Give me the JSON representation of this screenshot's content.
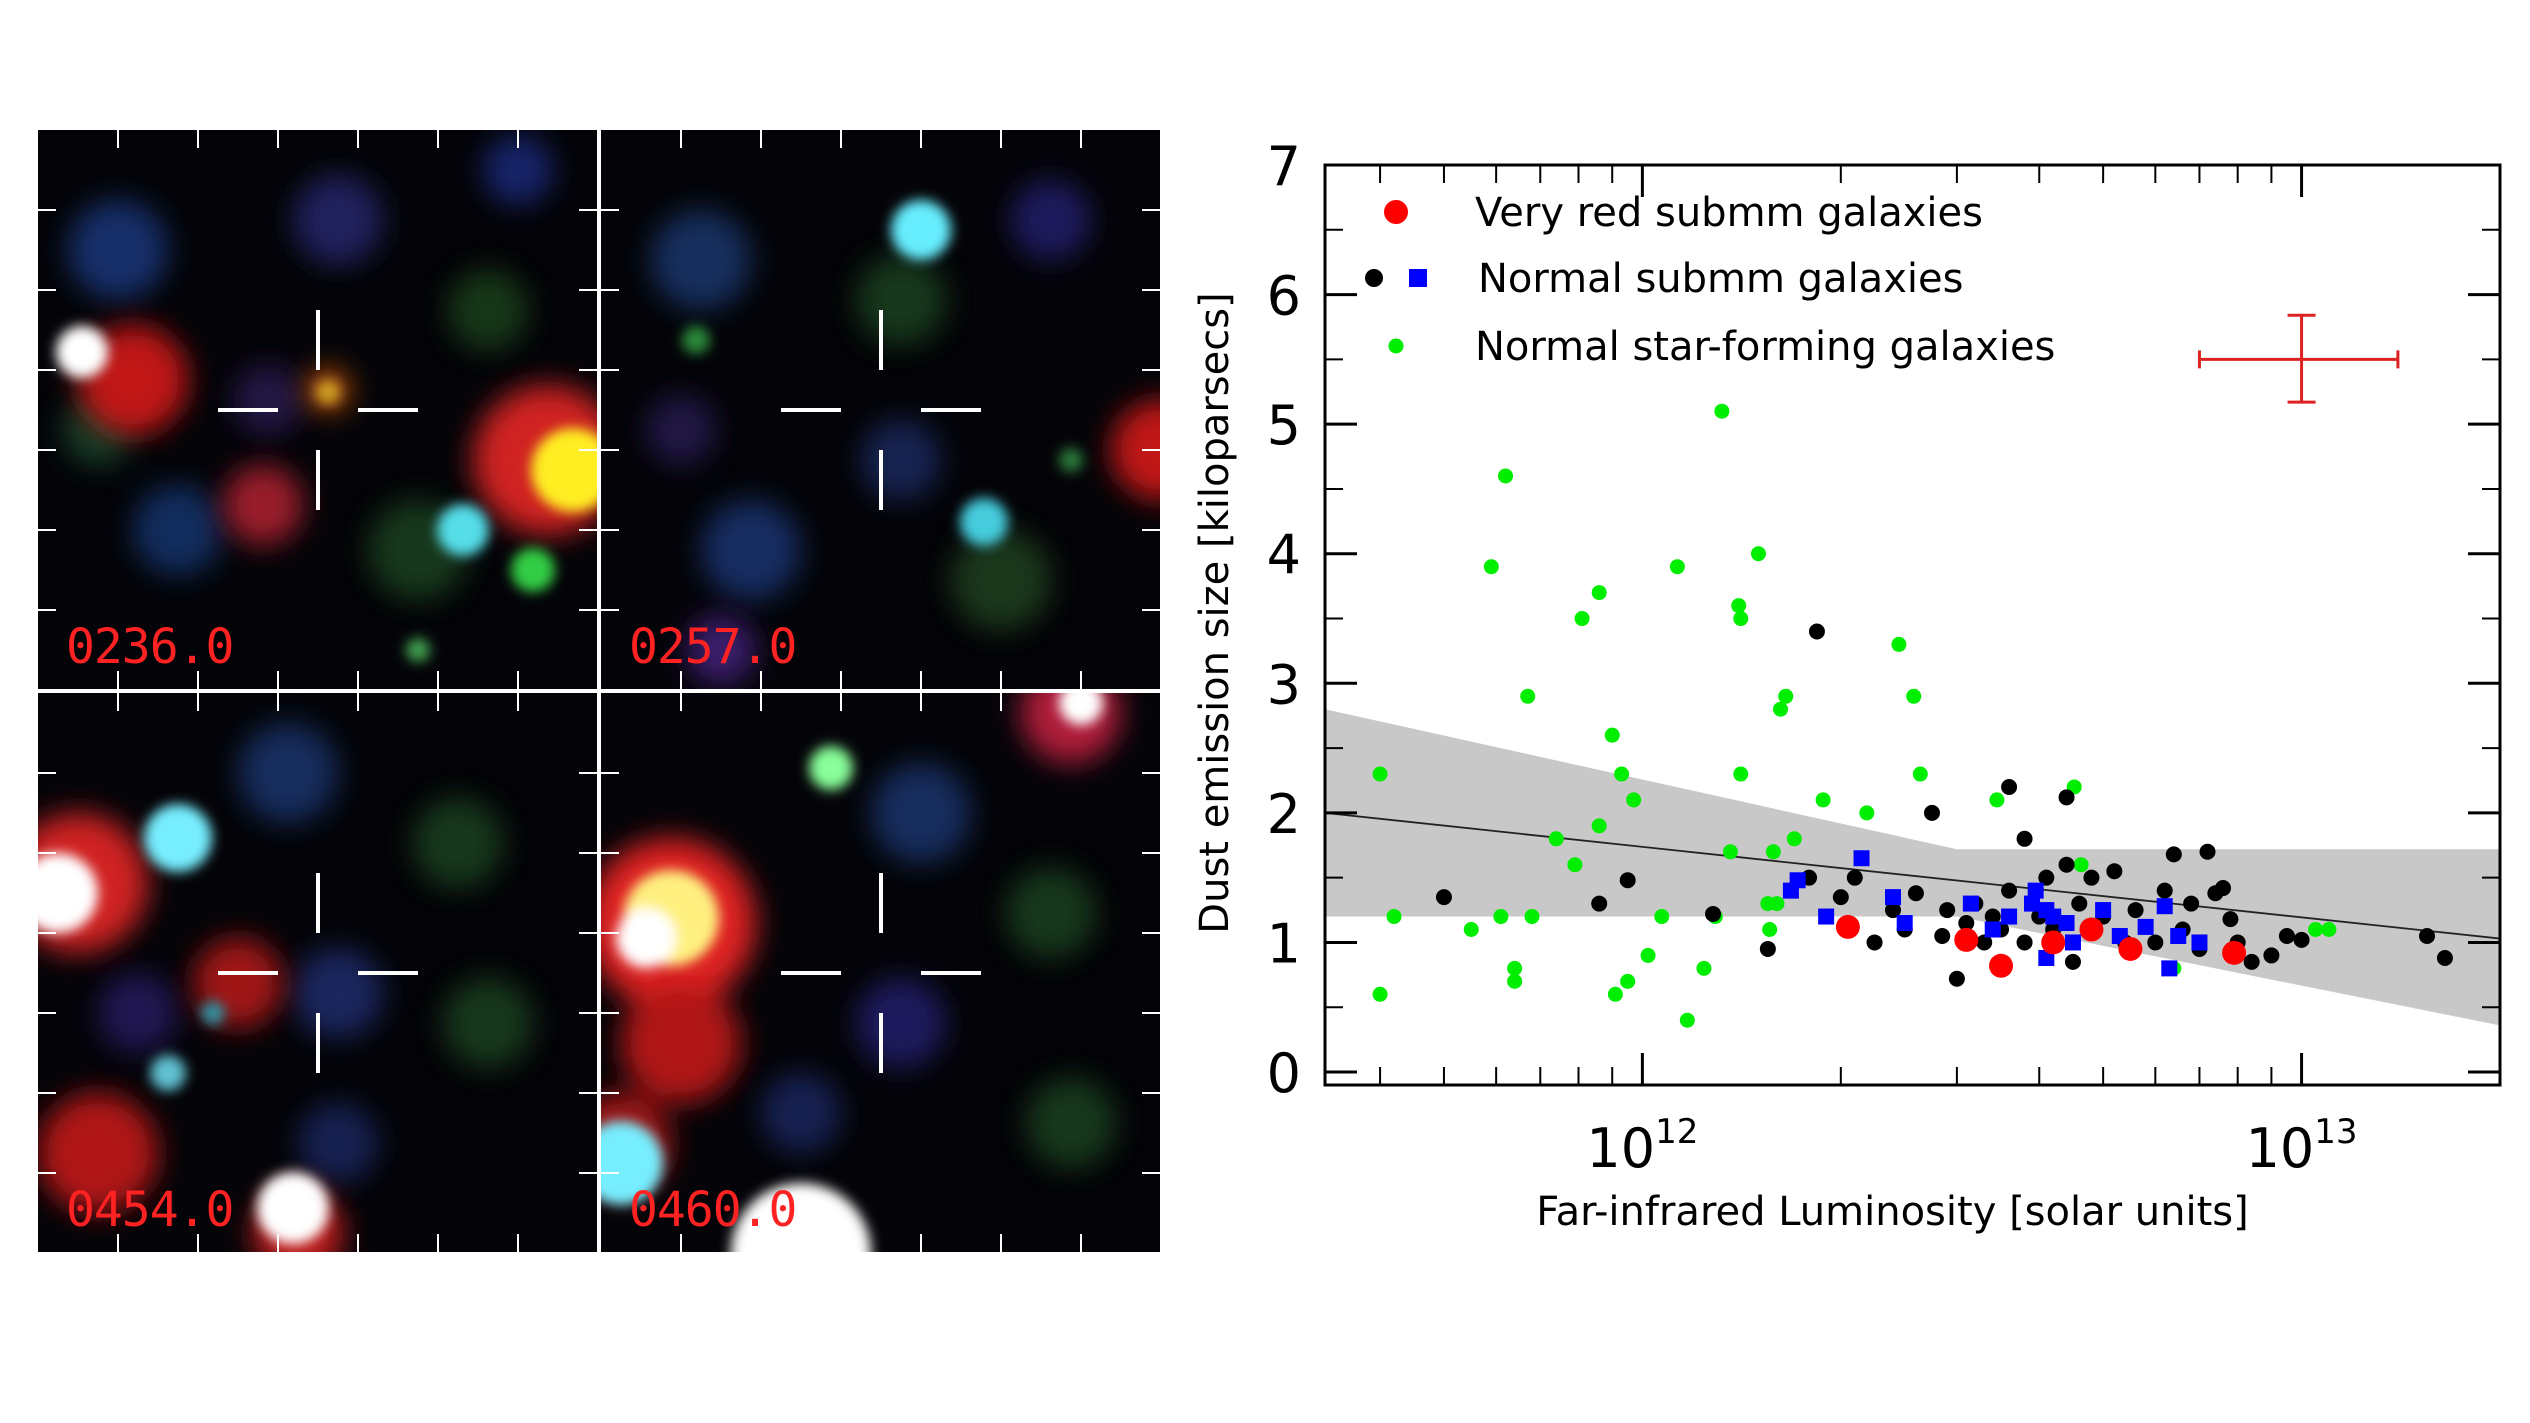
{
  "panels": [
    {
      "label": "0236.0"
    },
    {
      "label": "0257.0"
    },
    {
      "label": "0454.0"
    },
    {
      "label": "0460.0"
    }
  ],
  "colors": {
    "very_red": "#ff0000",
    "normal_black": "#000000",
    "normal_blue": "#0000ff",
    "star_forming": "#00ee00",
    "band": "#c8c8c8",
    "error_bar": "#dd2222",
    "panel_label": "#ff2222"
  },
  "chart_data": {
    "type": "scatter",
    "xlabel": "Far-infrared Luminosity [solar units]",
    "ylabel": "Dust  emission size  [kiloparsecs]",
    "x_scale": "log",
    "xlim": [
      330000000000.0,
      20000000000000.0
    ],
    "ylim": [
      -0.1,
      7.0
    ],
    "x_tick_labels": [
      {
        "value": 1000000000000.0,
        "base": "10",
        "exp": "12"
      },
      {
        "value": 10000000000000.0,
        "base": "10",
        "exp": "13"
      }
    ],
    "y_ticks": [
      0,
      1,
      2,
      3,
      4,
      5,
      6,
      7
    ],
    "legend_position": "top-left",
    "legend": [
      {
        "label": "Very red submm galaxies",
        "series": "very_red"
      },
      {
        "label": "Normal submm galaxies",
        "series": "normal"
      },
      {
        "label": "Normal star-forming galaxies",
        "series": "star_forming"
      }
    ],
    "error_bar": {
      "x": 10000000000000.0,
      "y": 5.5,
      "x_low": 7000000000000.0,
      "x_high": 14000000000000.0,
      "y_low": 5.17,
      "y_high": 5.84
    },
    "fit": {
      "x1": 330000000000.0,
      "y1": 2.0,
      "x2": 20000000000000.0,
      "y2": 1.03
    },
    "band": {
      "upper": [
        [
          330000000000.0,
          2.8
        ],
        [
          3000000000000.0,
          1.72
        ],
        [
          20000000000000.0,
          1.72
        ]
      ],
      "lower": [
        [
          330000000000.0,
          1.2
        ],
        [
          3000000000000.0,
          1.2
        ],
        [
          20000000000000.0,
          0.36
        ]
      ]
    },
    "series": [
      {
        "key": "star_forming",
        "marker": "circle-small",
        "points": [
          [
            400000000000.0,
            2.3
          ],
          [
            400000000000.0,
            0.6
          ],
          [
            420000000000.0,
            1.2
          ],
          [
            550000000000.0,
            1.1
          ],
          [
            590000000000.0,
            3.9
          ],
          [
            610000000000.0,
            1.2
          ],
          [
            620000000000.0,
            4.6
          ],
          [
            640000000000.0,
            0.8
          ],
          [
            640000000000.0,
            0.7
          ],
          [
            670000000000.0,
            2.9
          ],
          [
            680000000000.0,
            1.2
          ],
          [
            740000000000.0,
            1.8
          ],
          [
            790000000000.0,
            1.6
          ],
          [
            810000000000.0,
            3.5
          ],
          [
            860000000000.0,
            3.7
          ],
          [
            860000000000.0,
            1.9
          ],
          [
            900000000000.0,
            2.6
          ],
          [
            910000000000.0,
            0.6
          ],
          [
            930000000000.0,
            2.3
          ],
          [
            950000000000.0,
            0.7
          ],
          [
            970000000000.0,
            2.1
          ],
          [
            1020000000000.0,
            0.9
          ],
          [
            1070000000000.0,
            1.2
          ],
          [
            1130000000000.0,
            3.9
          ],
          [
            1170000000000.0,
            0.4
          ],
          [
            1240000000000.0,
            0.8
          ],
          [
            1290000000000.0,
            1.2
          ],
          [
            1320000000000.0,
            5.1
          ],
          [
            1360000000000.0,
            1.7
          ],
          [
            1400000000000.0,
            3.6
          ],
          [
            1410000000000.0,
            3.5
          ],
          [
            1410000000000.0,
            2.3
          ],
          [
            1500000000000.0,
            4.0
          ],
          [
            1550000000000.0,
            1.3
          ],
          [
            1560000000000.0,
            1.1
          ],
          [
            1580000000000.0,
            1.7
          ],
          [
            1600000000000.0,
            1.3
          ],
          [
            1620000000000.0,
            2.8
          ],
          [
            1650000000000.0,
            2.9
          ],
          [
            1700000000000.0,
            1.8
          ],
          [
            1880000000000.0,
            2.1
          ],
          [
            2190000000000.0,
            2.0
          ],
          [
            2450000000000.0,
            3.3
          ],
          [
            2580000000000.0,
            2.9
          ],
          [
            2640000000000.0,
            2.3
          ],
          [
            3450000000000.0,
            2.1
          ],
          [
            4520000000000.0,
            2.2
          ],
          [
            4630000000000.0,
            1.6
          ],
          [
            6400000000000.0,
            0.8
          ],
          [
            10500000000000.0,
            1.1
          ],
          [
            11000000000000.0,
            1.1
          ]
        ]
      },
      {
        "key": "normal_black",
        "marker": "circle",
        "points": [
          [
            500000000000.0,
            1.35
          ],
          [
            860000000000.0,
            1.3
          ],
          [
            950000000000.0,
            1.48
          ],
          [
            1280000000000.0,
            1.22
          ],
          [
            1550000000000.0,
            0.95
          ],
          [
            1790000000000.0,
            1.5
          ],
          [
            1840000000000.0,
            3.4
          ],
          [
            2000000000000.0,
            1.35
          ],
          [
            2100000000000.0,
            1.5
          ],
          [
            2250000000000.0,
            1.0
          ],
          [
            2400000000000.0,
            1.25
          ],
          [
            2500000000000.0,
            1.1
          ],
          [
            2600000000000.0,
            1.38
          ],
          [
            2750000000000.0,
            2.0
          ],
          [
            2850000000000.0,
            1.05
          ],
          [
            2900000000000.0,
            1.25
          ],
          [
            3000000000000.0,
            0.72
          ],
          [
            3100000000000.0,
            1.15
          ],
          [
            3200000000000.0,
            1.3
          ],
          [
            3300000000000.0,
            1.0
          ],
          [
            3400000000000.0,
            1.2
          ],
          [
            3500000000000.0,
            1.1
          ],
          [
            3600000000000.0,
            2.2
          ],
          [
            3600000000000.0,
            1.4
          ],
          [
            3800000000000.0,
            1.8
          ],
          [
            3800000000000.0,
            1.0
          ],
          [
            3900000000000.0,
            1.3
          ],
          [
            4000000000000.0,
            1.2
          ],
          [
            4100000000000.0,
            1.5
          ],
          [
            4200000000000.0,
            1.1
          ],
          [
            4400000000000.0,
            2.12
          ],
          [
            4400000000000.0,
            1.6
          ],
          [
            4500000000000.0,
            0.85
          ],
          [
            4600000000000.0,
            1.3
          ],
          [
            4800000000000.0,
            1.5
          ],
          [
            5000000000000.0,
            1.2
          ],
          [
            5200000000000.0,
            1.55
          ],
          [
            5400000000000.0,
            1.0
          ],
          [
            5600000000000.0,
            1.25
          ],
          [
            6000000000000.0,
            1.0
          ],
          [
            6200000000000.0,
            1.4
          ],
          [
            6400000000000.0,
            1.68
          ],
          [
            6600000000000.0,
            1.1
          ],
          [
            6800000000000.0,
            1.3
          ],
          [
            7000000000000.0,
            0.95
          ],
          [
            7200000000000.0,
            1.7
          ],
          [
            7400000000000.0,
            1.38
          ],
          [
            7600000000000.0,
            1.42
          ],
          [
            7800000000000.0,
            1.18
          ],
          [
            8000000000000.0,
            1.0
          ],
          [
            8400000000000.0,
            0.85
          ],
          [
            9000000000000.0,
            0.9
          ],
          [
            9500000000000.0,
            1.05
          ],
          [
            10000000000000.0,
            1.02
          ],
          [
            15500000000000.0,
            1.05
          ],
          [
            16500000000000.0,
            0.88
          ]
        ]
      },
      {
        "key": "normal_blue",
        "marker": "square",
        "points": [
          [
            1680000000000.0,
            1.4
          ],
          [
            1720000000000.0,
            1.48
          ],
          [
            1900000000000.0,
            1.2
          ],
          [
            2150000000000.0,
            1.65
          ],
          [
            2400000000000.0,
            1.35
          ],
          [
            2500000000000.0,
            1.15
          ],
          [
            3150000000000.0,
            1.3
          ],
          [
            3400000000000.0,
            1.1
          ],
          [
            3600000000000.0,
            1.2
          ],
          [
            3900000000000.0,
            1.3
          ],
          [
            4100000000000.0,
            1.25
          ],
          [
            4200000000000.0,
            1.2
          ],
          [
            4400000000000.0,
            1.15
          ],
          [
            4500000000000.0,
            1.0
          ],
          [
            5000000000000.0,
            1.25
          ],
          [
            5300000000000.0,
            1.05
          ],
          [
            5800000000000.0,
            1.12
          ],
          [
            6200000000000.0,
            1.28
          ],
          [
            6300000000000.0,
            0.8
          ],
          [
            6500000000000.0,
            1.05
          ],
          [
            7000000000000.0,
            1.0
          ],
          [
            4100000000000.0,
            0.88
          ],
          [
            3950000000000.0,
            1.4
          ]
        ]
      },
      {
        "key": "very_red",
        "marker": "circle-large",
        "points": [
          [
            2050000000000.0,
            1.12
          ],
          [
            3100000000000.0,
            1.02
          ],
          [
            3500000000000.0,
            0.82
          ],
          [
            4200000000000.0,
            1.0
          ],
          [
            4800000000000.0,
            1.1
          ],
          [
            5500000000000.0,
            0.95
          ],
          [
            7900000000000.0,
            0.92
          ]
        ]
      }
    ]
  }
}
